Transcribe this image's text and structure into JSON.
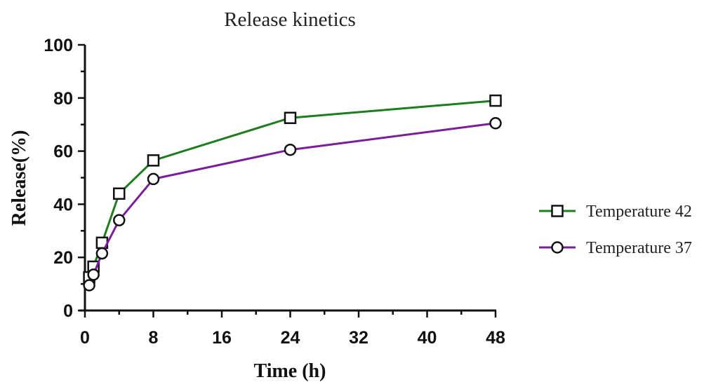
{
  "chart_data": {
    "type": "line",
    "title": "Release kinetics",
    "xlabel": "Time (h)",
    "ylabel": "Release(%)",
    "xlim": [
      0,
      48
    ],
    "ylim": [
      0,
      100
    ],
    "xticks": [
      0,
      8,
      16,
      24,
      32,
      40,
      48
    ],
    "yticks": [
      0,
      20,
      40,
      60,
      80,
      100
    ],
    "grid": false,
    "legend_position": "right",
    "series": [
      {
        "name": "Temperature 42",
        "color": "#1e7d1e",
        "marker": "square",
        "x": [
          0.5,
          1,
          2,
          4,
          8,
          24,
          48
        ],
        "y": [
          12.5,
          16.5,
          25.5,
          44,
          56.5,
          72.5,
          79
        ]
      },
      {
        "name": "Temperature 37",
        "color": "#7b1e9c",
        "marker": "circle",
        "x": [
          0.5,
          1,
          2,
          4,
          8,
          24,
          48
        ],
        "y": [
          9.5,
          13.5,
          21.5,
          34,
          49.5,
          60.5,
          70.5
        ]
      }
    ]
  }
}
